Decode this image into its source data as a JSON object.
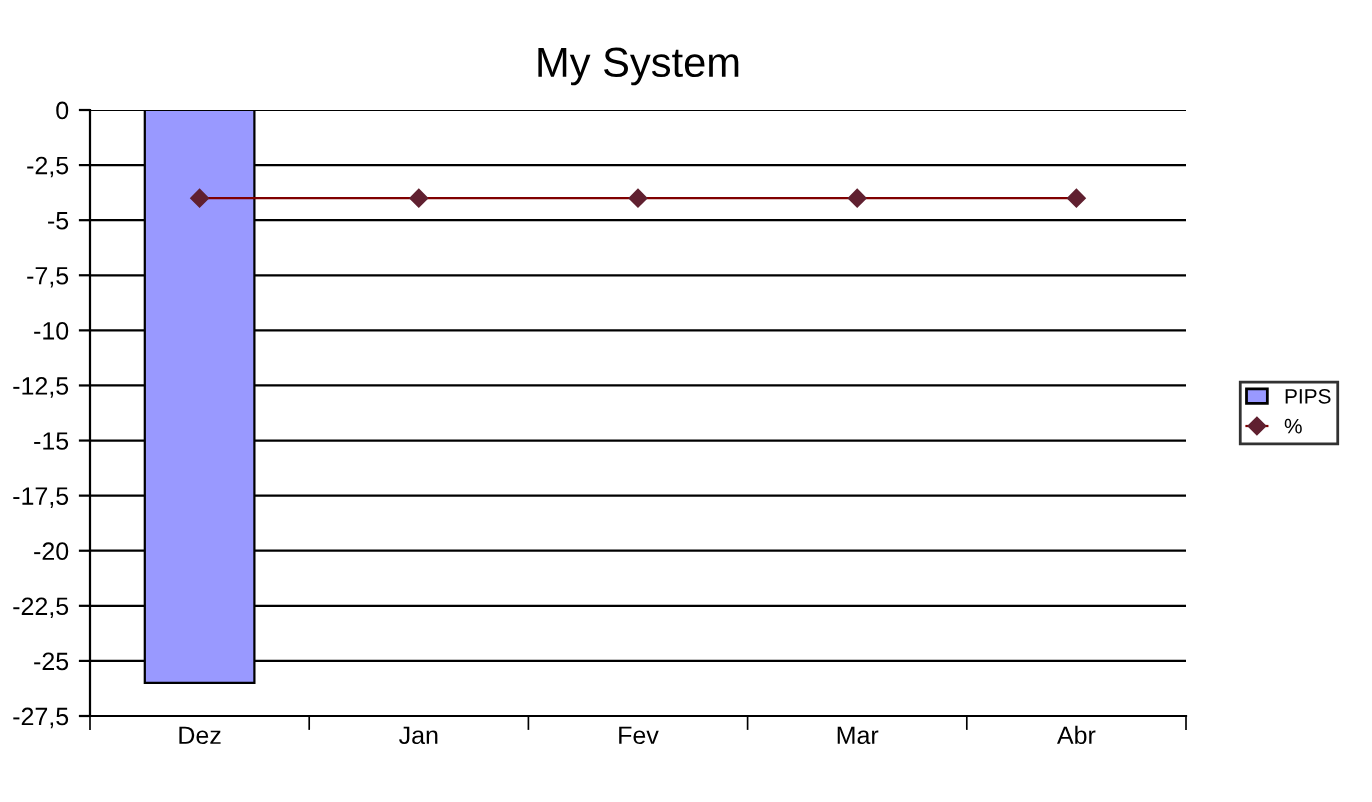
{
  "chart_data": {
    "type": "bar",
    "title": "My System",
    "categories": [
      "Dez",
      "Jan",
      "Fev",
      "Mar",
      "Abr"
    ],
    "series": [
      {
        "name": "PIPS",
        "color": "#9999ff",
        "values": [
          -26,
          null,
          null,
          null,
          null
        ]
      },
      {
        "name": "%",
        "type": "line",
        "color": "#800000",
        "marker": "diamond",
        "values": [
          -4,
          -4,
          -4,
          -4,
          -4
        ]
      }
    ],
    "ylim": [
      -27.5,
      0
    ],
    "yticks": [
      0,
      {
        "value": -2.5,
        "label": "-2,5"
      },
      -5,
      {
        "value": -7.5,
        "label": "-7,5"
      },
      -10,
      {
        "value": -12.5,
        "label": "-12,5"
      },
      -15,
      {
        "value": -17.5,
        "label": "-17,5"
      },
      -20,
      {
        "value": -22.5,
        "label": "-22,5"
      },
      -25,
      {
        "value": -27.5,
        "label": "-27,5"
      }
    ],
    "grid": "y",
    "legend": "right"
  }
}
